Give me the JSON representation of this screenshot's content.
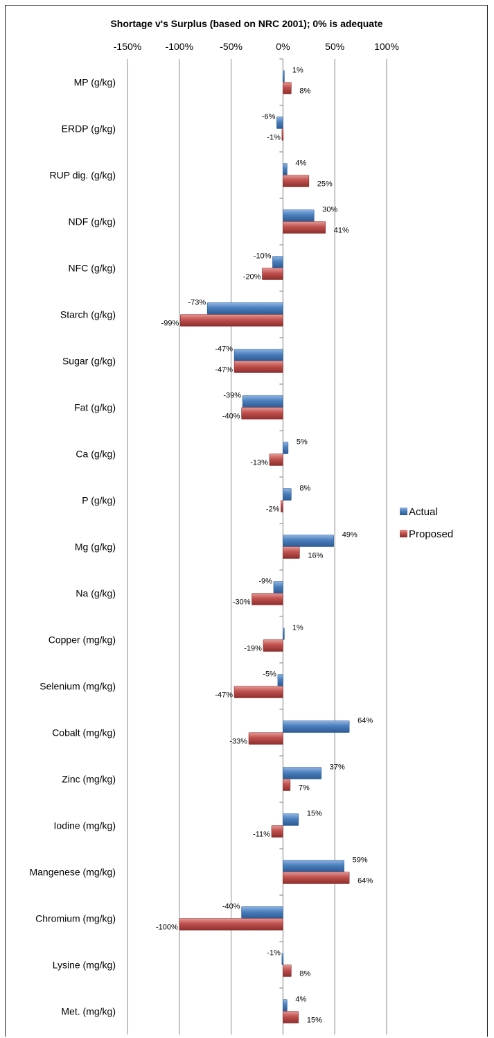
{
  "chart_data": {
    "type": "bar",
    "orientation": "horizontal",
    "title": "Shortage v's Surplus (based on NRC 2001); 0% is adequate",
    "xlim": [
      -150,
      100
    ],
    "x_ticks": [
      "-150%",
      "-100%",
      "-50%",
      "0%",
      "50%",
      "100%"
    ],
    "tick_values": [
      -150,
      -100,
      -50,
      0,
      50,
      100
    ],
    "legend_position": "right",
    "categories": [
      "MP (g/kg)",
      "ERDP (g/kg)",
      "RUP dig. (g/kg)",
      "NDF (g/kg)",
      "NFC (g/kg)",
      "Starch (g/kg)",
      "Sugar (g/kg)",
      "Fat (g/kg)",
      "Ca (g/kg)",
      "P (g/kg)",
      "Mg (g/kg)",
      "Na (g/kg)",
      "Copper (mg/kg)",
      "Selenium (mg/kg)",
      "Cobalt (mg/kg)",
      "Zinc (mg/kg)",
      "Iodine (mg/kg)",
      "Mangenese (mg/kg)",
      "Chromium (mg/kg)",
      "Lysine (mg/kg)",
      "Met. (mg/kg)"
    ],
    "series": [
      {
        "name": "Actual",
        "color": "#4a7ebb",
        "values": [
          1,
          -6,
          4,
          30,
          -10,
          -73,
          -47,
          -39,
          5,
          8,
          49,
          -9,
          1,
          -5,
          64,
          37,
          15,
          59,
          -40,
          -1,
          4
        ],
        "labels": [
          "1%",
          "-6%",
          "4%",
          "30%",
          "-10%",
          "-73%",
          "-47%",
          "-39%",
          "5%",
          "8%",
          "49%",
          "-9%",
          "1%",
          "-5%",
          "64%",
          "37%",
          "15%",
          "59%",
          "-40%",
          "-1%",
          "4%"
        ]
      },
      {
        "name": "Proposed",
        "color": "#c0504d",
        "values": [
          8,
          -1,
          25,
          41,
          -20,
          -99,
          -47,
          -40,
          -13,
          -2,
          16,
          -30,
          -19,
          -47,
          -33,
          7,
          -11,
          64,
          -100,
          8,
          15
        ],
        "labels": [
          "8%",
          "-1%",
          "25%",
          "41%",
          "-20%",
          "-99%",
          "-47%",
          "-40%",
          "-13%",
          "-2%",
          "16%",
          "-30%",
          "-19%",
          "-47%",
          "-33%",
          "7%",
          "-11%",
          "64%",
          "-100%",
          "8%",
          "15%"
        ]
      }
    ]
  }
}
